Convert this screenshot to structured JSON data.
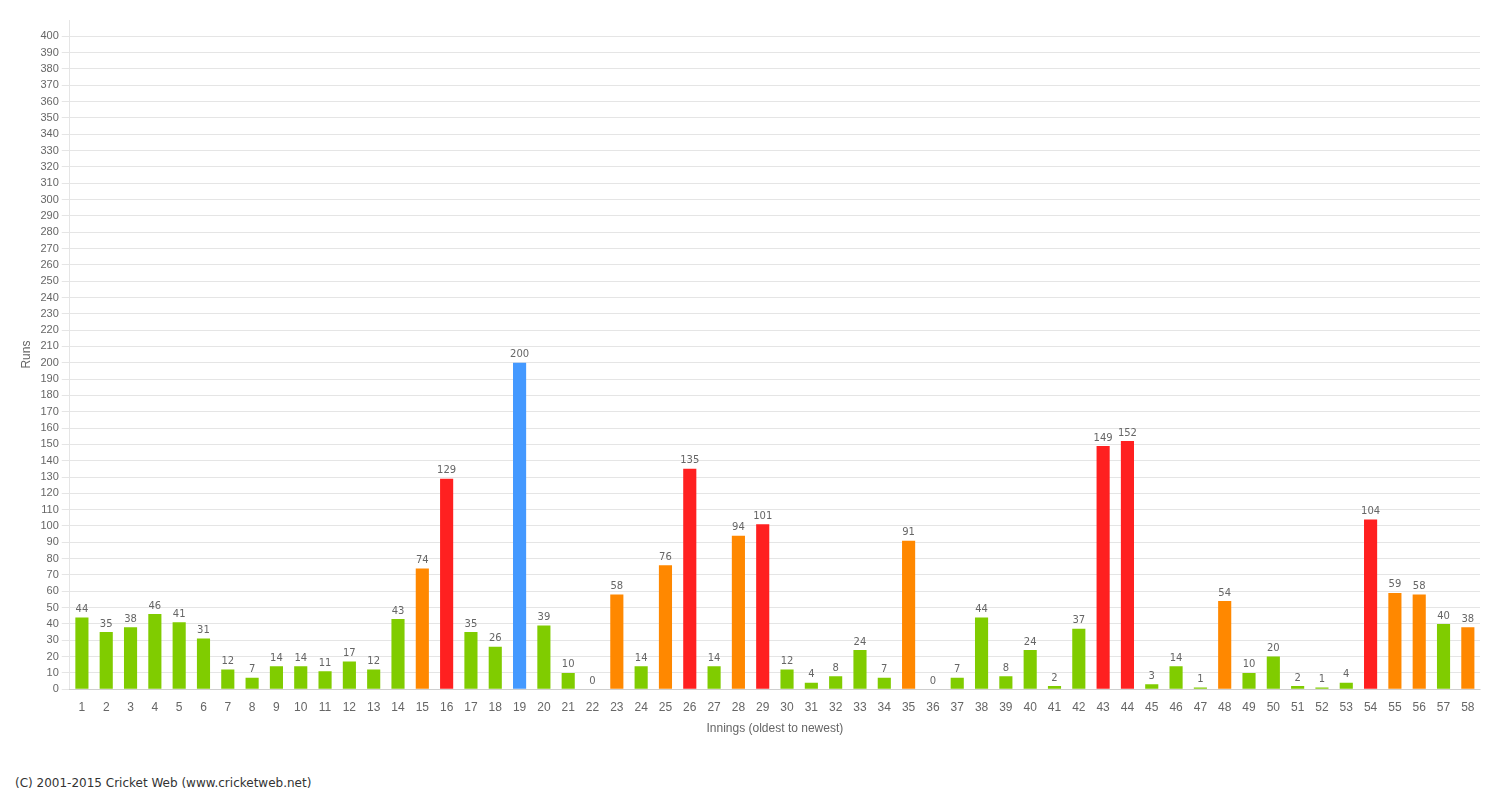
{
  "chart_data": {
    "type": "bar",
    "xlabel": "Innings (oldest to newest)",
    "ylabel": "Runs",
    "annotations": [
      "(C) 2001-2015 Cricket Web (www.cricketweb.net)"
    ],
    "categories": [
      "1",
      "2",
      "3",
      "4",
      "5",
      "6",
      "7",
      "8",
      "9",
      "10",
      "11",
      "12",
      "13",
      "14",
      "15",
      "16",
      "17",
      "18",
      "19",
      "20",
      "21",
      "22",
      "23",
      "24",
      "25",
      "26",
      "27",
      "28",
      "29",
      "30",
      "31",
      "32",
      "33",
      "34",
      "35",
      "36",
      "37",
      "38",
      "39",
      "40",
      "41",
      "42",
      "43",
      "44",
      "45",
      "46",
      "47",
      "48",
      "49",
      "50",
      "51",
      "52",
      "53",
      "54",
      "55",
      "56",
      "57",
      "58"
    ],
    "values": [
      44,
      35,
      38,
      46,
      41,
      31,
      12,
      7,
      14,
      14,
      11,
      17,
      12,
      43,
      74,
      129,
      35,
      26,
      200,
      39,
      10,
      0,
      58,
      14,
      76,
      135,
      14,
      94,
      101,
      12,
      4,
      8,
      24,
      7,
      91,
      0,
      7,
      44,
      8,
      24,
      2,
      37,
      149,
      152,
      3,
      14,
      1,
      54,
      10,
      20,
      2,
      1,
      4,
      104,
      59,
      58,
      40,
      38
    ],
    "colors": [
      "#80cc00",
      "#80cc00",
      "#80cc00",
      "#80cc00",
      "#80cc00",
      "#80cc00",
      "#80cc00",
      "#80cc00",
      "#80cc00",
      "#80cc00",
      "#80cc00",
      "#80cc00",
      "#80cc00",
      "#80cc00",
      "#ff8800",
      "#ff2020",
      "#80cc00",
      "#80cc00",
      "#4499ff",
      "#80cc00",
      "#80cc00",
      "#80cc00",
      "#ff8800",
      "#80cc00",
      "#ff8800",
      "#ff2020",
      "#80cc00",
      "#ff8800",
      "#ff2020",
      "#80cc00",
      "#80cc00",
      "#80cc00",
      "#80cc00",
      "#80cc00",
      "#ff8800",
      "#80cc00",
      "#80cc00",
      "#80cc00",
      "#80cc00",
      "#80cc00",
      "#80cc00",
      "#80cc00",
      "#ff2020",
      "#ff2020",
      "#80cc00",
      "#80cc00",
      "#80cc00",
      "#ff8800",
      "#80cc00",
      "#80cc00",
      "#80cc00",
      "#80cc00",
      "#80cc00",
      "#ff2020",
      "#ff8800",
      "#ff8800",
      "#80cc00",
      "#ff8800"
    ],
    "ylim": [
      0,
      410
    ],
    "yticks": [
      0,
      10,
      20,
      30,
      40,
      50,
      60,
      70,
      80,
      90,
      100,
      110,
      120,
      130,
      140,
      150,
      160,
      170,
      180,
      190,
      200,
      210,
      220,
      230,
      240,
      250,
      260,
      270,
      280,
      290,
      300,
      310,
      320,
      330,
      340,
      350,
      360,
      370,
      380,
      390,
      400
    ],
    "grid": true,
    "data_labels": true
  }
}
